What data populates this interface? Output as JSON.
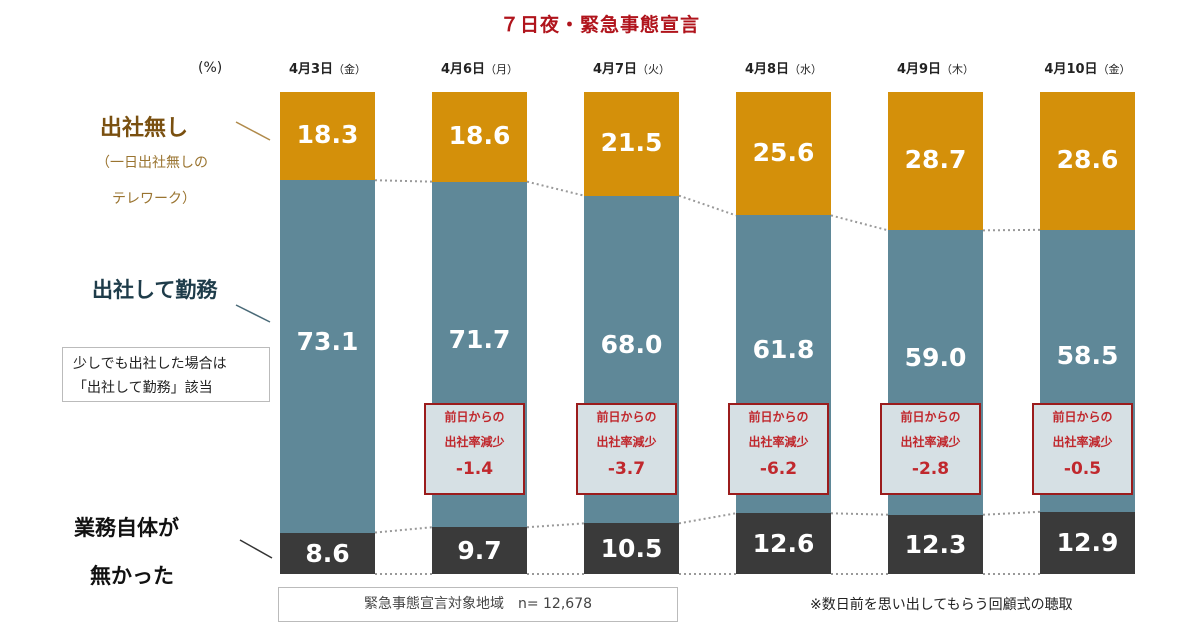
{
  "colors": {
    "no_office": "#d4900a",
    "office": "#5f8898",
    "no_work": "#3a3a3a",
    "title": "#b0141c",
    "callout_text": "#c0282d",
    "callout_border": "#9b1c1c"
  },
  "title": "７日夜・緊急事態宣言",
  "unit": "(%)",
  "legend": {
    "no_office": "出社無し",
    "no_office_sub1": "（一日出社無しの",
    "no_office_sub2": "テレワーク）",
    "office": "出社して勤務",
    "no_work_1": "業務自体が",
    "no_work_2": "無かった"
  },
  "note": {
    "line1": "少しでも出社した場合は",
    "line2": "「出社して勤務」該当"
  },
  "footer": "緊急事態宣言対象地域　n= 12,678",
  "footnote": "※数日前を思い出してもらう回顧式の聴取",
  "callout_label_1": "前日からの",
  "callout_label_2": "出社率減少",
  "chart_data": {
    "type": "bar",
    "stacked": true,
    "title": "７日夜・緊急事態宣言",
    "ylabel": "(%)",
    "categories": [
      {
        "date": "4月3日",
        "weekday": "（金）"
      },
      {
        "date": "4月6日",
        "weekday": "（月）"
      },
      {
        "date": "4月7日",
        "weekday": "（火）"
      },
      {
        "date": "4月8日",
        "weekday": "（水）"
      },
      {
        "date": "4月9日",
        "weekday": "（木）"
      },
      {
        "date": "4月10日",
        "weekday": "（金）"
      }
    ],
    "series": [
      {
        "name": "出社無し",
        "values": [
          "18.3",
          "18.6",
          "21.5",
          "25.6",
          "28.7",
          "28.6"
        ]
      },
      {
        "name": "出社して勤務",
        "values": [
          "73.1",
          "71.7",
          "68.0",
          "61.8",
          "59.0",
          "58.5"
        ]
      },
      {
        "name": "業務自体が無かった",
        "values": [
          "8.6",
          "9.7",
          "10.5",
          "12.6",
          "12.3",
          "12.9"
        ]
      }
    ],
    "change_from_previous_day": [
      null,
      "-1.4",
      "-3.7",
      "-6.2",
      "-2.8",
      "-0.5"
    ],
    "ylim": [
      0,
      100
    ]
  }
}
